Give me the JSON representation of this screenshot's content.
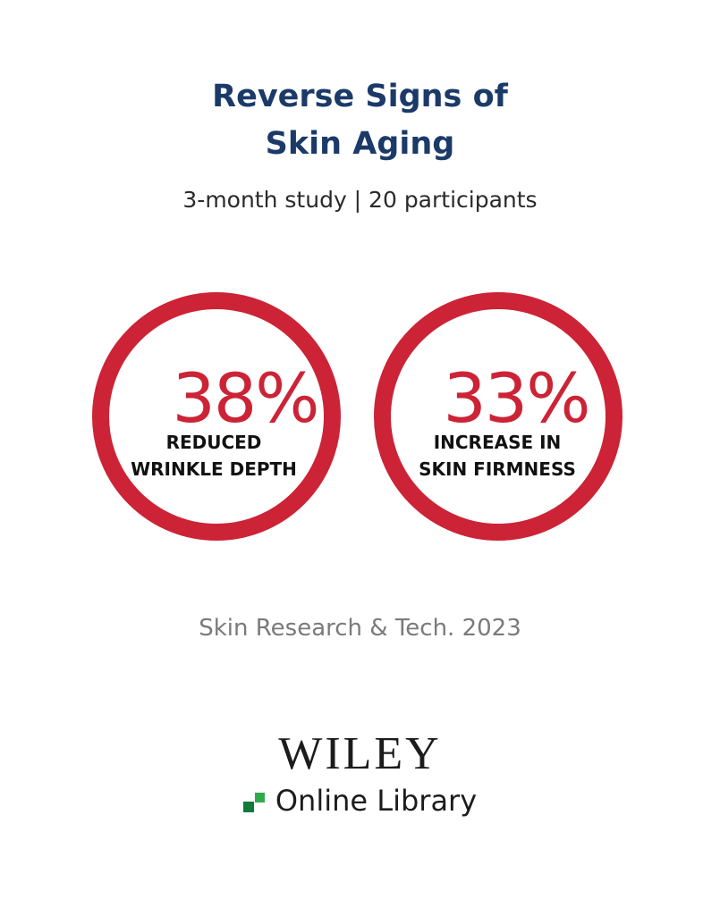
{
  "header": {
    "title_line1": "Reverse Signs of",
    "title_line2": "Skin Aging",
    "subtitle": "3-month study | 20 participants"
  },
  "stats": [
    {
      "value": "38%",
      "label_line1": "REDUCED",
      "label_line2": "WRINKLE DEPTH"
    },
    {
      "value": "33%",
      "label_line1": "INCREASE IN",
      "label_line2": "SKIN FIRMNESS"
    }
  ],
  "source": "Skin Research & Tech. 2023",
  "logo": {
    "wordmark": "WILEY",
    "subtitle": "Online Library"
  },
  "colors": {
    "title": "#1b3a68",
    "accent": "#cc2336",
    "logo_green_dark": "#0f7a3a",
    "logo_green_light": "#2eaa4e"
  }
}
